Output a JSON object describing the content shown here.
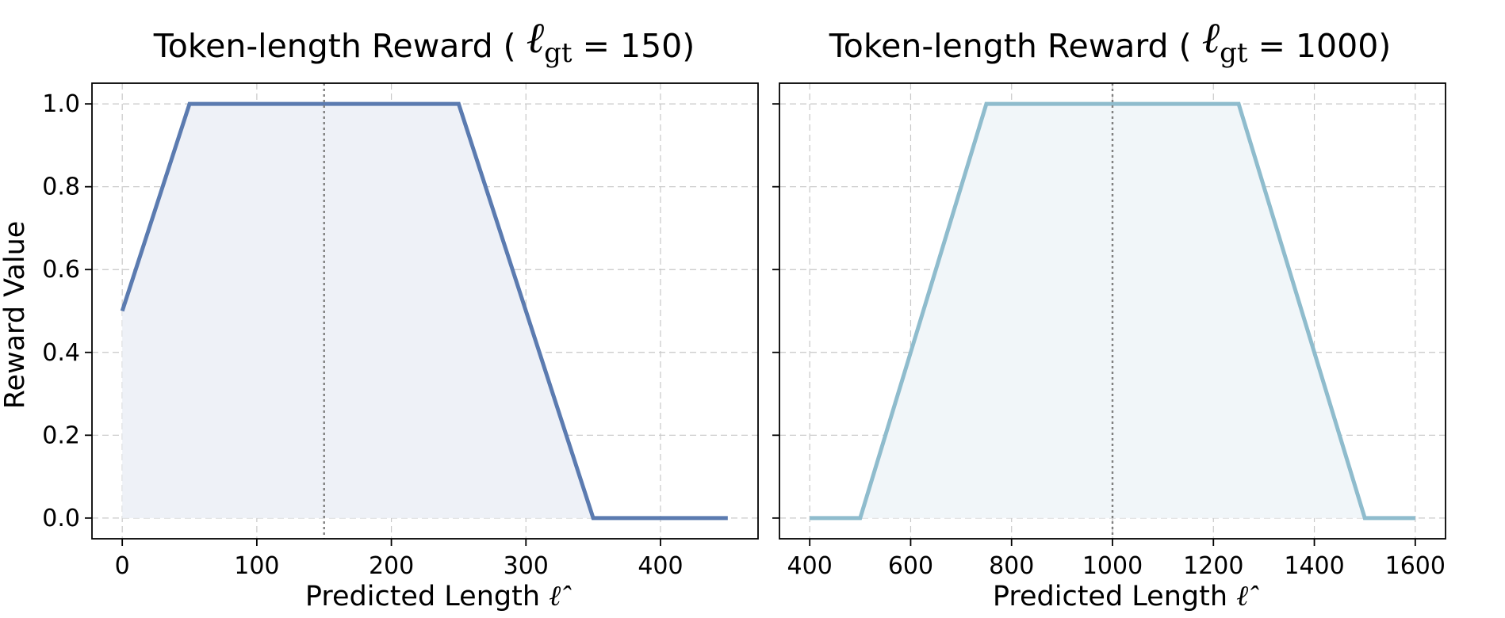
{
  "chart_data": [
    {
      "type": "area",
      "title": "Token-length Reward (",
      "title_math_symbol": "ℓ",
      "title_math_subscript": "gt",
      "title_value": "= 150)",
      "xlabel": "Predicted Length",
      "xlabel_symbol": "ℓ̂",
      "ylabel": "Reward Value",
      "xlim": [
        -22.5,
        472.5
      ],
      "ylim": [
        -0.05,
        1.05
      ],
      "xticks": [
        0,
        100,
        200,
        300,
        400
      ],
      "xtick_labels": [
        "0",
        "100",
        "200",
        "300",
        "400"
      ],
      "yticks": [
        0.0,
        0.2,
        0.4,
        0.6,
        0.8,
        1.0
      ],
      "ytick_labels": [
        "0.0",
        "0.2",
        "0.4",
        "0.6",
        "0.8",
        "1.0"
      ],
      "reference_x": 150,
      "grid": true,
      "series": [
        {
          "x": [
            0,
            50,
            250,
            350,
            450
          ],
          "y": [
            0.5,
            1.0,
            1.0,
            0.0,
            0.0
          ],
          "color": "#5b7bb0",
          "fill": "#eef1f7"
        }
      ]
    },
    {
      "type": "area",
      "title": "Token-length Reward (",
      "title_math_symbol": "ℓ",
      "title_math_subscript": "gt",
      "title_value": "= 1000)",
      "xlabel": "Predicted Length",
      "xlabel_symbol": "ℓ̂",
      "ylabel": "",
      "xlim": [
        340,
        1660
      ],
      "ylim": [
        -0.05,
        1.05
      ],
      "xticks": [
        400,
        600,
        800,
        1000,
        1200,
        1400,
        1600
      ],
      "xtick_labels": [
        "400",
        "600",
        "800",
        "1000",
        "1200",
        "1400",
        "1600"
      ],
      "yticks": [
        0.0,
        0.2,
        0.4,
        0.6,
        0.8,
        1.0
      ],
      "ytick_labels": [],
      "reference_x": 1000,
      "grid": true,
      "series": [
        {
          "x": [
            400,
            500,
            750,
            1250,
            1500,
            1600
          ],
          "y": [
            0.0,
            0.0,
            1.0,
            1.0,
            0.0,
            0.0
          ],
          "color": "#8fbccd",
          "fill": "#f1f6f9"
        }
      ]
    }
  ]
}
